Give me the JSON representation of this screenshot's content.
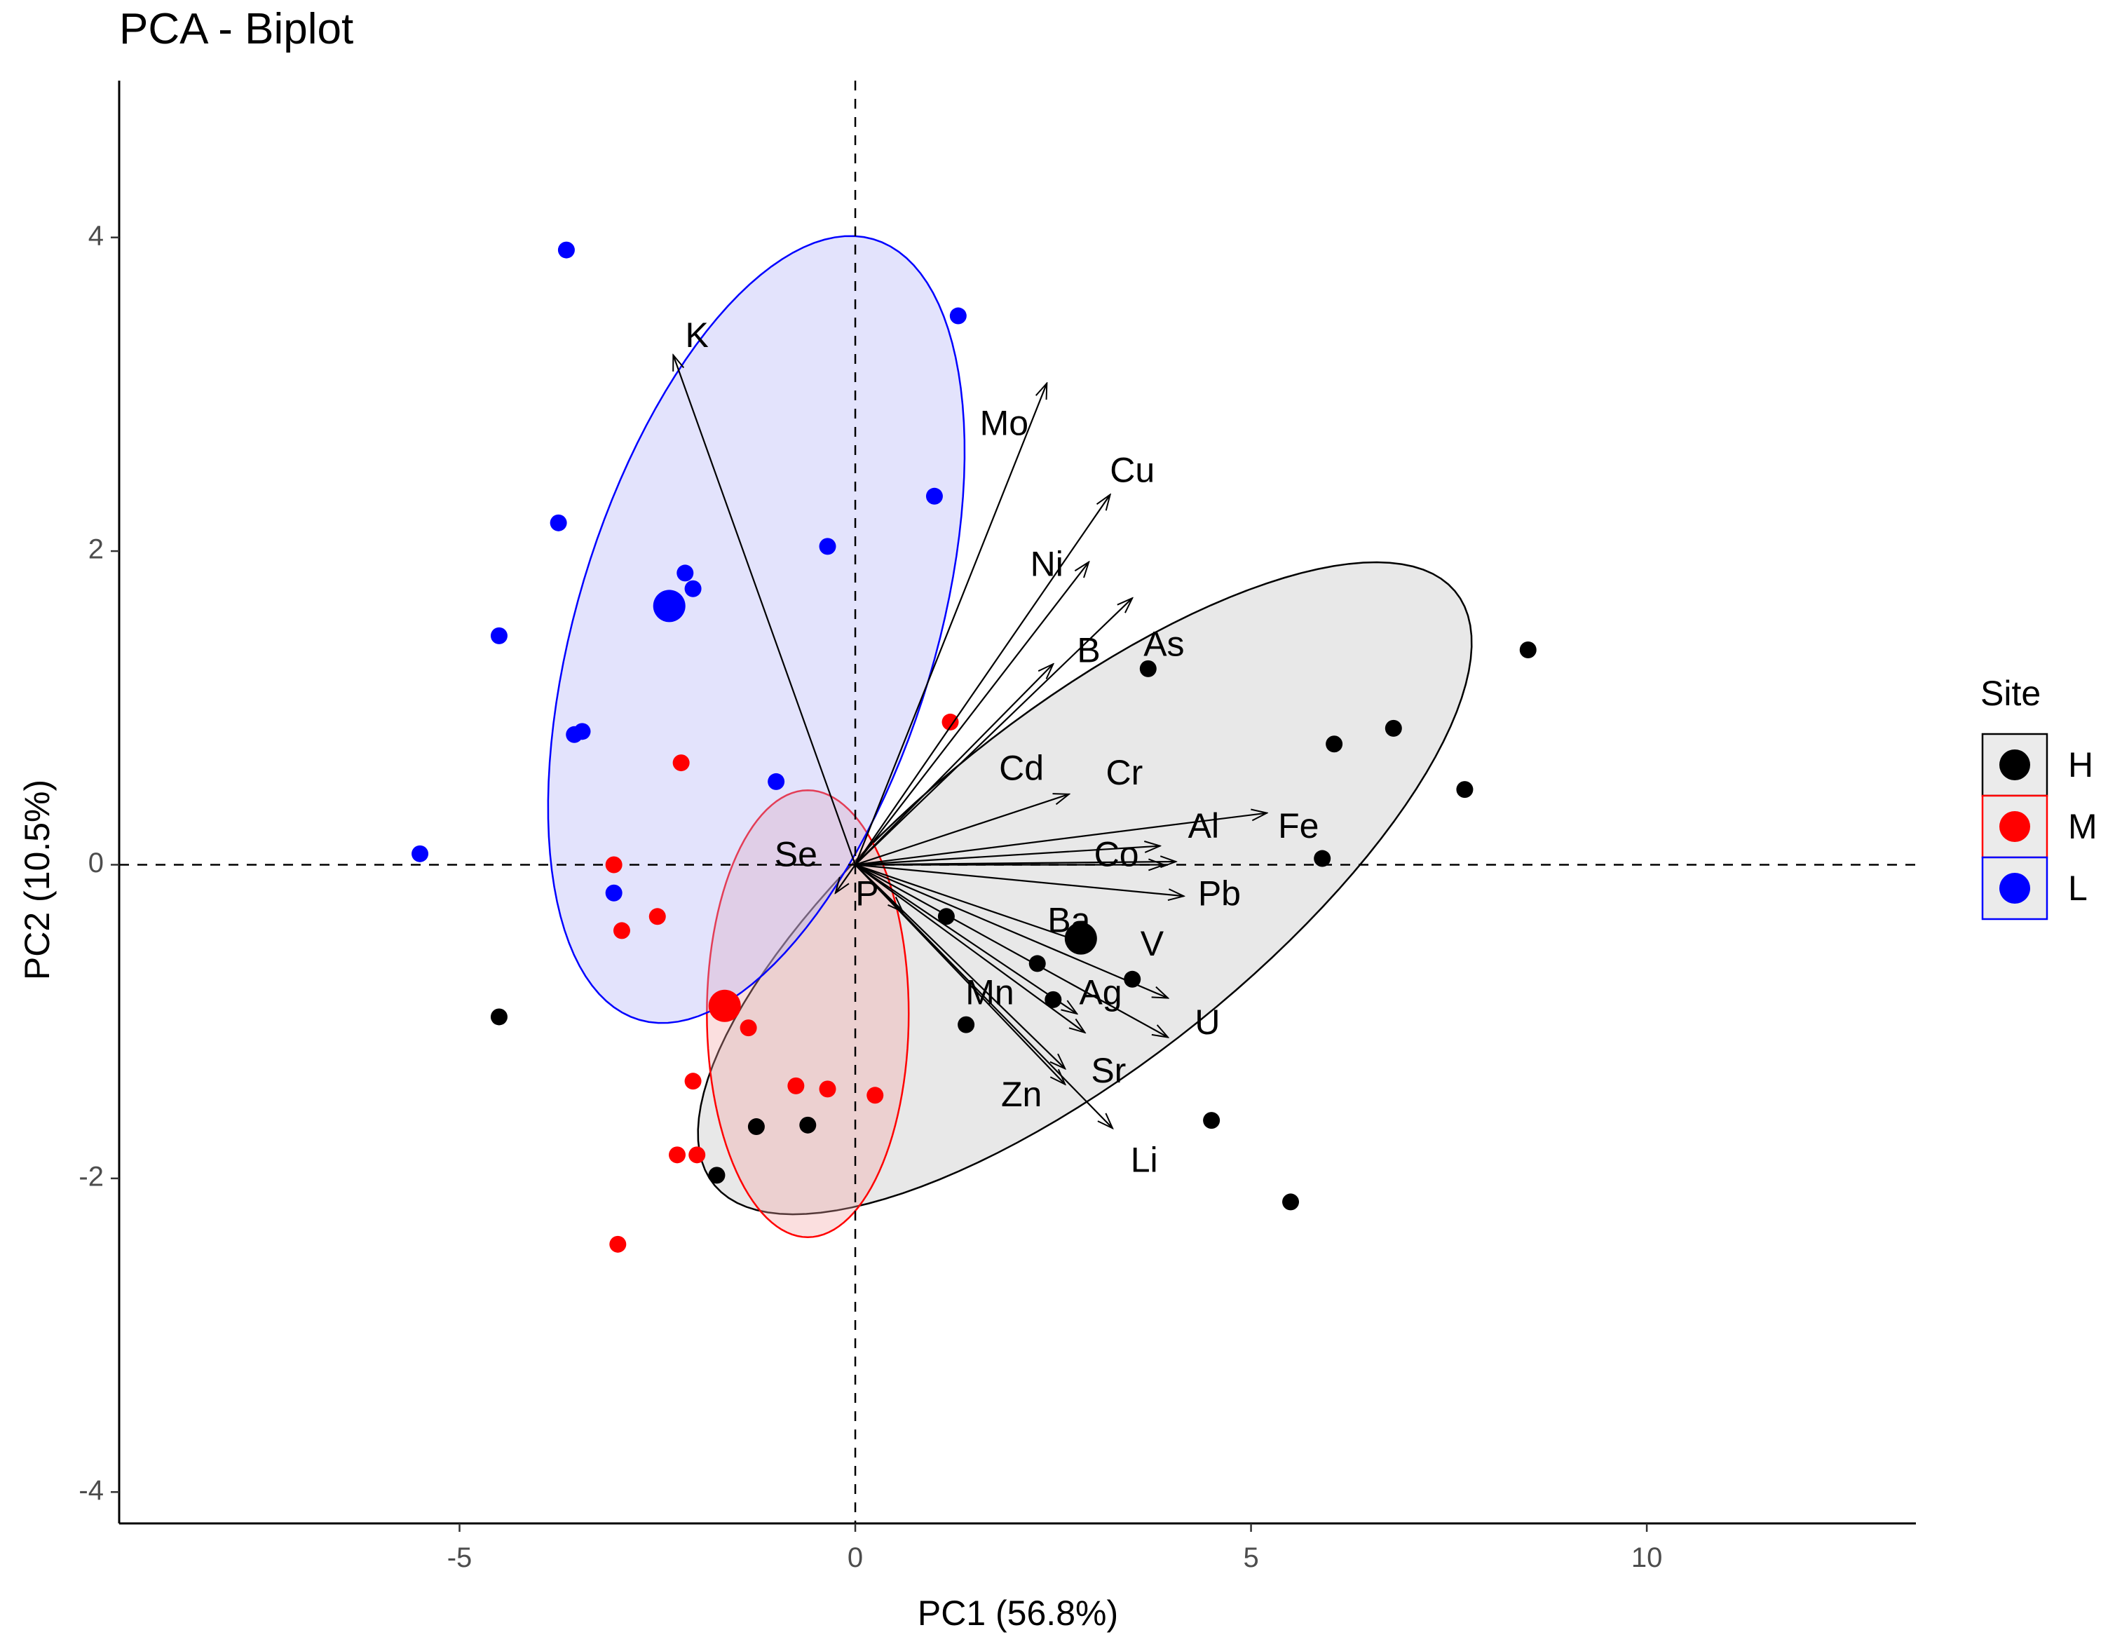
{
  "chart_data": {
    "type": "scatter",
    "title": "PCA - Biplot",
    "xlabel": "PC1 (56.8%)",
    "ylabel": "PC2 (10.5%)",
    "xlim": [
      -9.3,
      13.4
    ],
    "ylim": [
      -4.2,
      5.0
    ],
    "xticks": [
      -5,
      0,
      5,
      10
    ],
    "yticks": [
      -4,
      -2,
      0,
      2,
      4
    ],
    "xtick_labels": [
      "-5",
      "0",
      "5",
      "10"
    ],
    "ytick_labels": [
      "-4",
      "-2",
      "0",
      "2",
      "4"
    ],
    "reference_lines": {
      "x": 0,
      "y": 0,
      "style": "dashed"
    },
    "legend": {
      "title": "Site",
      "position": "right",
      "items": [
        {
          "label": "H",
          "color": "#000000"
        },
        {
          "label": "M",
          "color": "#ff0000"
        },
        {
          "label": "L",
          "color": "#0000ff"
        }
      ]
    },
    "groups": [
      {
        "name": "H",
        "color": "#000000",
        "fill": "#bdbdbd",
        "centroid": [
          2.85,
          -0.47
        ],
        "ellipse": {
          "center": [
            2.9,
            -0.15
          ],
          "rx": 10.3,
          "ry": 2.6,
          "angle_deg": 19
        },
        "points": [
          [
            8.5,
            1.37
          ],
          [
            6.05,
            0.77
          ],
          [
            6.8,
            0.87
          ],
          [
            7.7,
            0.48
          ],
          [
            5.9,
            0.04
          ],
          [
            3.7,
            1.25
          ],
          [
            1.15,
            -0.33
          ],
          [
            2.3,
            -0.63
          ],
          [
            2.5,
            -0.86
          ],
          [
            3.5,
            -0.73
          ],
          [
            1.4,
            -1.02
          ],
          [
            4.5,
            -1.63
          ],
          [
            5.5,
            -2.15
          ],
          [
            -4.5,
            -0.97
          ],
          [
            -1.25,
            -1.67
          ],
          [
            -0.6,
            -1.66
          ],
          [
            -1.75,
            -1.98
          ]
        ]
      },
      {
        "name": "M",
        "color": "#ff0000",
        "fill": "#f4a3a3",
        "centroid": [
          -1.65,
          -0.9
        ],
        "ellipse": {
          "center": [
            -0.6,
            -0.95
          ],
          "rx": 2.55,
          "ry": 2.85,
          "angle_deg": 0
        },
        "points": [
          [
            1.2,
            0.91
          ],
          [
            -2.2,
            0.65
          ],
          [
            -3.05,
            0.0
          ],
          [
            -2.95,
            -0.42
          ],
          [
            -2.5,
            -0.33
          ],
          [
            -1.35,
            -1.04
          ],
          [
            -2.05,
            -1.38
          ],
          [
            -0.75,
            -1.41
          ],
          [
            -0.35,
            -1.43
          ],
          [
            0.25,
            -1.47
          ],
          [
            -2.25,
            -1.85
          ],
          [
            -2.0,
            -1.85
          ],
          [
            -3.0,
            -2.42
          ]
        ]
      },
      {
        "name": "L",
        "color": "#0000ff",
        "fill": "#aeaef5",
        "centroid": [
          -2.35,
          1.65
        ],
        "ellipse": {
          "center": [
            -1.25,
            1.5
          ],
          "rx": 6.2,
          "ry": 3.8,
          "angle_deg": 42
        },
        "points": [
          [
            -3.65,
            3.92
          ],
          [
            1.3,
            3.5
          ],
          [
            -3.75,
            2.18
          ],
          [
            1.0,
            2.35
          ],
          [
            -0.35,
            2.03
          ],
          [
            -2.15,
            1.86
          ],
          [
            -2.05,
            1.76
          ],
          [
            -4.5,
            1.46
          ],
          [
            -3.45,
            0.85
          ],
          [
            -3.55,
            0.83
          ],
          [
            -1.0,
            0.53
          ],
          [
            -5.5,
            0.07
          ],
          [
            -3.05,
            -0.18
          ]
        ]
      }
    ],
    "variables": [
      {
        "name": "K",
        "x": -2.3,
        "y": 3.25,
        "label_x": -2.0,
        "label_y": 3.36
      },
      {
        "name": "Mo",
        "x": 2.42,
        "y": 3.07,
        "label_x": 1.88,
        "label_y": 2.8
      },
      {
        "name": "Cu",
        "x": 3.22,
        "y": 2.36,
        "label_x": 3.5,
        "label_y": 2.5
      },
      {
        "name": "Ni",
        "x": 2.95,
        "y": 1.93,
        "label_x": 2.42,
        "label_y": 1.9
      },
      {
        "name": "B",
        "x": 3.5,
        "y": 1.7,
        "label_x": 2.95,
        "label_y": 1.35
      },
      {
        "name": "As",
        "x": 2.5,
        "y": 1.28,
        "label_x": 3.9,
        "label_y": 1.39
      },
      {
        "name": "Cd",
        "x": 2.7,
        "y": 0.45,
        "label_x": 2.1,
        "label_y": 0.6
      },
      {
        "name": "Cr",
        "x": 3.85,
        "y": 0.12,
        "label_x": 3.4,
        "label_y": 0.57
      },
      {
        "name": "Al",
        "x": 4.05,
        "y": 0.02,
        "label_x": 4.4,
        "label_y": 0.23
      },
      {
        "name": "Fe",
        "x": 5.2,
        "y": 0.33,
        "label_x": 5.6,
        "label_y": 0.23
      },
      {
        "name": "Co",
        "x": 3.9,
        "y": 0.0,
        "label_x": 3.3,
        "label_y": 0.05
      },
      {
        "name": "Pb",
        "x": 4.15,
        "y": -0.2,
        "label_x": 4.6,
        "label_y": -0.2
      },
      {
        "name": "Ba",
        "x": 2.9,
        "y": -0.5,
        "label_x": 2.7,
        "label_y": -0.37
      },
      {
        "name": "V",
        "x": 3.95,
        "y": -0.85,
        "label_x": 3.75,
        "label_y": -0.52
      },
      {
        "name": "Ag",
        "x": 2.8,
        "y": -0.95,
        "label_x": 3.1,
        "label_y": -0.83
      },
      {
        "name": "Mn",
        "x": 2.9,
        "y": -1.07,
        "label_x": 1.7,
        "label_y": -0.83
      },
      {
        "name": "U",
        "x": 3.95,
        "y": -1.1,
        "label_x": 4.45,
        "label_y": -1.02
      },
      {
        "name": "Sr",
        "x": 2.65,
        "y": -1.3,
        "label_x": 3.2,
        "label_y": -1.33
      },
      {
        "name": "Zn",
        "x": 2.65,
        "y": -1.4,
        "label_x": 2.1,
        "label_y": -1.48
      },
      {
        "name": "Li",
        "x": 3.25,
        "y": -1.68,
        "label_x": 3.65,
        "label_y": -1.9
      },
      {
        "name": "Se",
        "x": -0.25,
        "y": -0.18,
        "label_x": -0.75,
        "label_y": 0.05
      },
      {
        "name": "P",
        "x": 0.6,
        "y": -0.3,
        "label_x": 0.15,
        "label_y": -0.2
      }
    ]
  }
}
